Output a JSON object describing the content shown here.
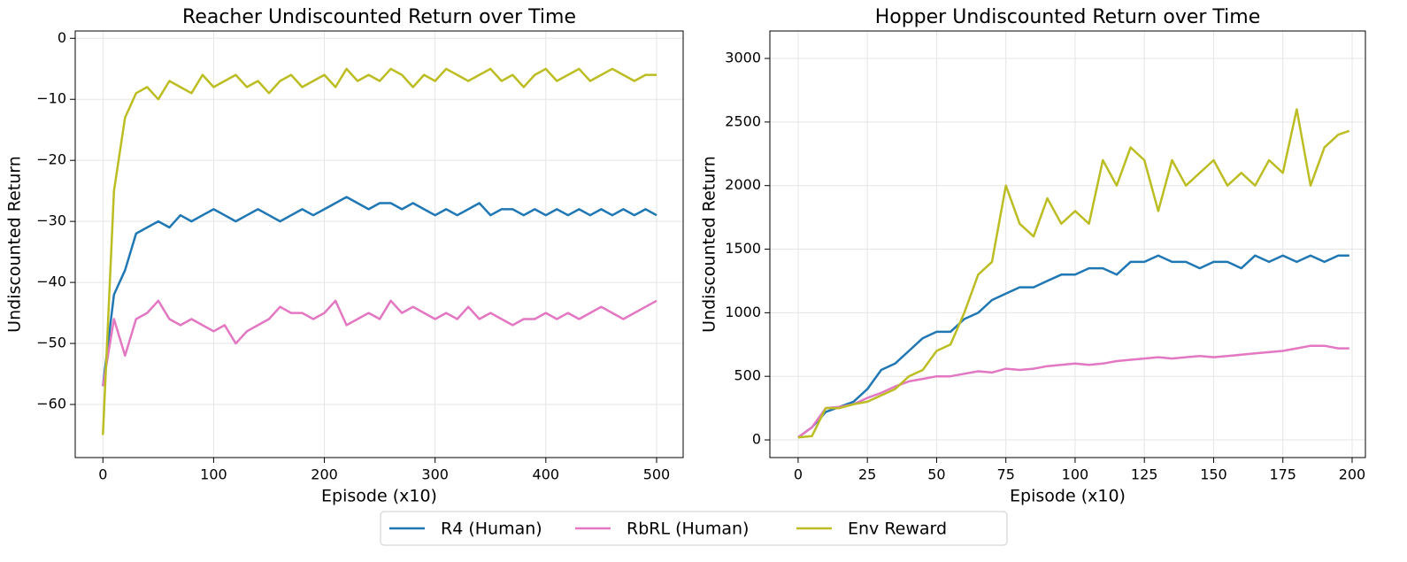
{
  "chart_data": [
    {
      "type": "line",
      "title": "Reacher Undiscounted Return over Time",
      "xlabel": "Episode (x10)",
      "ylabel": "Undiscounted Return",
      "x": [
        0,
        10,
        20,
        30,
        40,
        50,
        60,
        70,
        80,
        90,
        100,
        110,
        120,
        130,
        140,
        150,
        160,
        170,
        180,
        190,
        200,
        210,
        220,
        230,
        240,
        250,
        260,
        270,
        280,
        290,
        300,
        310,
        320,
        330,
        340,
        350,
        360,
        370,
        380,
        390,
        400,
        410,
        420,
        430,
        440,
        450,
        460,
        470,
        480,
        490,
        500
      ],
      "series": [
        {
          "name": "R4 (Human)",
          "color": "#1f77b4",
          "values": [
            -57,
            -42,
            -38,
            -32,
            -31,
            -30,
            -31,
            -29,
            -30,
            -29,
            -28,
            -29,
            -30,
            -29,
            -28,
            -29,
            -30,
            -29,
            -28,
            -29,
            -28,
            -27,
            -26,
            -27,
            -28,
            -27,
            -27,
            -28,
            -27,
            -28,
            -29,
            -28,
            -29,
            -28,
            -27,
            -29,
            -28,
            -28,
            -29,
            -28,
            -29,
            -28,
            -29,
            -28,
            -29,
            -28,
            -29,
            -28,
            -29,
            -28,
            -29
          ]
        },
        {
          "name": "RbRL (Human)",
          "color": "#e377c2",
          "values": [
            -57,
            -46,
            -52,
            -46,
            -45,
            -43,
            -46,
            -47,
            -46,
            -47,
            -48,
            -47,
            -50,
            -48,
            -47,
            -46,
            -44,
            -45,
            -45,
            -46,
            -45,
            -43,
            -47,
            -46,
            -45,
            -46,
            -43,
            -45,
            -44,
            -45,
            -46,
            -45,
            -46,
            -44,
            -46,
            -45,
            -46,
            -47,
            -46,
            -46,
            -45,
            -46,
            -45,
            -46,
            -45,
            -44,
            -45,
            -46,
            -45,
            -44,
            -43
          ]
        },
        {
          "name": "Env Reward",
          "color": "#bcbd22",
          "values": [
            -65,
            -25,
            -13,
            -9,
            -8,
            -10,
            -7,
            -8,
            -9,
            -6,
            -8,
            -7,
            -6,
            -8,
            -7,
            -9,
            -7,
            -6,
            -8,
            -7,
            -6,
            -8,
            -5,
            -7,
            -6,
            -7,
            -5,
            -6,
            -8,
            -6,
            -7,
            -5,
            -6,
            -7,
            -6,
            -5,
            -7,
            -6,
            -8,
            -6,
            -5,
            -7,
            -6,
            -5,
            -7,
            -6,
            -5,
            -6,
            -7,
            -6,
            -6
          ]
        }
      ],
      "xlim": [
        -25,
        524
      ],
      "ylim": [
        -68.7,
        1.2
      ],
      "xticks": [
        0,
        100,
        200,
        300,
        400,
        500
      ],
      "yticks": [
        {
          "value": -60,
          "label": "−60"
        },
        {
          "value": -50,
          "label": "−50"
        },
        {
          "value": -40,
          "label": "−40"
        },
        {
          "value": -30,
          "label": "−30"
        },
        {
          "value": -20,
          "label": "−20"
        },
        {
          "value": -10,
          "label": "−10"
        },
        0
      ],
      "grid": true
    },
    {
      "type": "line",
      "title": "Hopper Undiscounted Return over Time",
      "xlabel": "Episode (x10)",
      "ylabel": "Undiscounted Return",
      "x": [
        0,
        5,
        10,
        15,
        20,
        25,
        30,
        35,
        40,
        45,
        50,
        55,
        60,
        65,
        70,
        75,
        80,
        85,
        90,
        95,
        100,
        105,
        110,
        115,
        120,
        125,
        130,
        135,
        140,
        145,
        150,
        155,
        160,
        165,
        170,
        175,
        180,
        185,
        190,
        195,
        199
      ],
      "series": [
        {
          "name": "R4 (Human)",
          "color": "#1f77b4",
          "values": [
            20,
            100,
            220,
            260,
            300,
            400,
            550,
            600,
            700,
            800,
            850,
            850,
            950,
            1000,
            1100,
            1150,
            1200,
            1200,
            1250,
            1300,
            1300,
            1350,
            1350,
            1300,
            1400,
            1400,
            1450,
            1400,
            1400,
            1350,
            1400,
            1400,
            1350,
            1450,
            1400,
            1450,
            1400,
            1450,
            1400,
            1450,
            1450
          ]
        },
        {
          "name": "RbRL (Human)",
          "color": "#e377c2",
          "values": [
            20,
            100,
            250,
            260,
            280,
            330,
            370,
            420,
            460,
            480,
            500,
            500,
            520,
            540,
            530,
            560,
            550,
            560,
            580,
            590,
            600,
            590,
            600,
            620,
            630,
            640,
            650,
            640,
            650,
            660,
            650,
            660,
            670,
            680,
            690,
            700,
            720,
            740,
            740,
            720,
            720
          ]
        },
        {
          "name": "Env Reward",
          "color": "#bcbd22",
          "values": [
            20,
            30,
            250,
            250,
            280,
            300,
            350,
            400,
            500,
            550,
            700,
            750,
            1000,
            1300,
            1400,
            2000,
            1700,
            1600,
            1900,
            1700,
            1800,
            1700,
            2200,
            2000,
            2300,
            2200,
            1800,
            2200,
            2000,
            2100,
            2200,
            2000,
            2100,
            2000,
            2200,
            2100,
            2600,
            2000,
            2300,
            2400,
            2430
          ]
        }
      ],
      "xlim": [
        -10.2,
        204.8
      ],
      "ylim": [
        -139,
        3216
      ],
      "xticks": [
        0,
        25,
        50,
        75,
        100,
        125,
        150,
        175,
        200
      ],
      "yticks": [
        0,
        500,
        1000,
        1500,
        2000,
        2500,
        3000
      ],
      "grid": true
    }
  ]
}
